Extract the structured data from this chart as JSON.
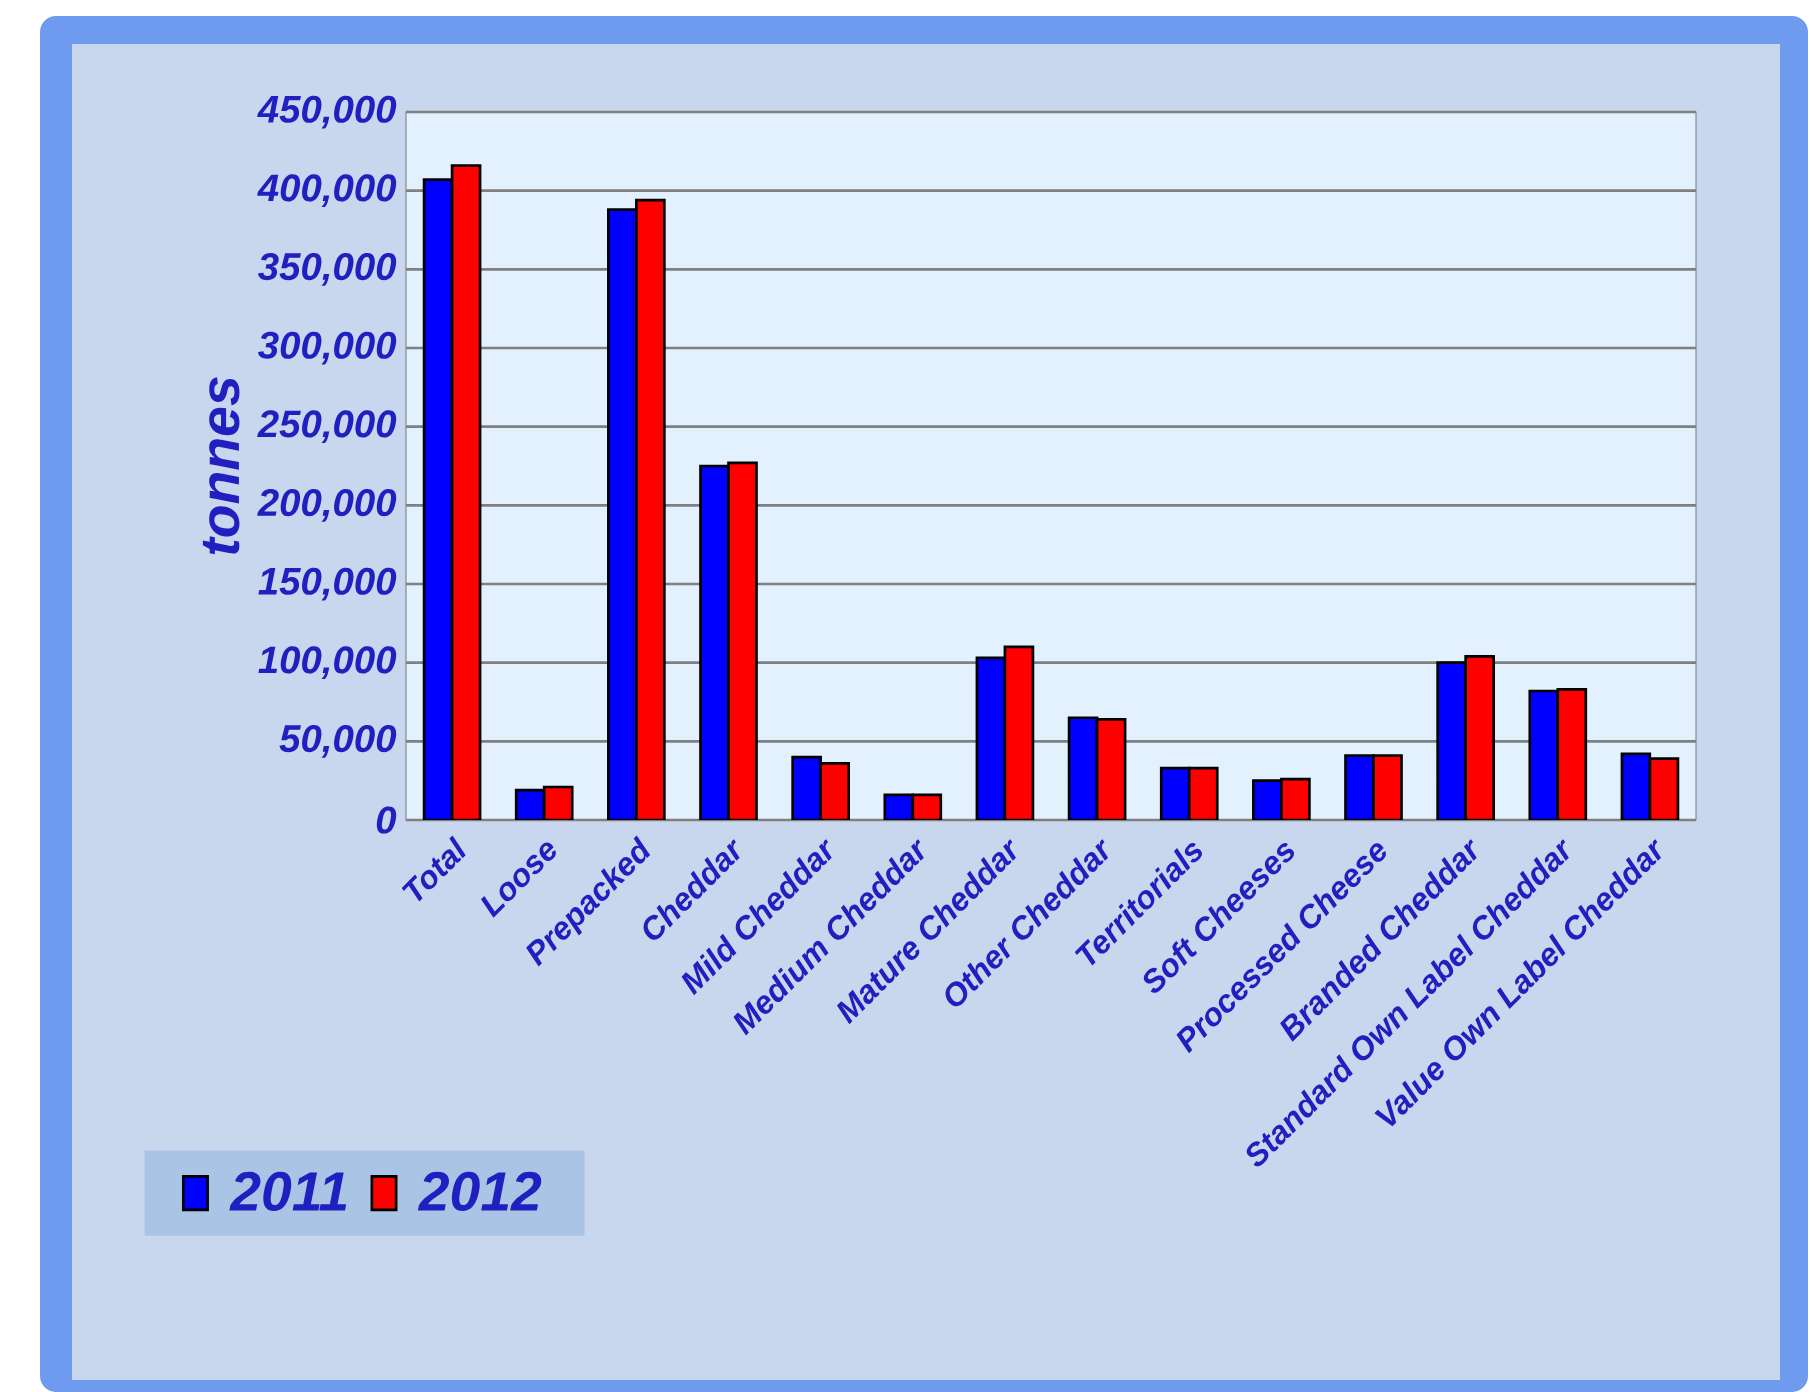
{
  "chart_data": {
    "type": "bar",
    "ylabel": "tonnes",
    "categories": [
      "Total",
      "Loose",
      "Prepacked",
      "Cheddar",
      "Mild Cheddar",
      "Medium Cheddar",
      "Mature Cheddar",
      "Other Cheddar",
      "Territorials",
      "Soft Cheeses",
      "Processed Cheese",
      "Branded Cheddar",
      "Standard Own Label Cheddar",
      "Value Own Label Cheddar"
    ],
    "series": [
      {
        "name": "2011",
        "color": "#0000ff",
        "values": [
          407000,
          19000,
          388000,
          225000,
          40000,
          16000,
          103000,
          65000,
          33000,
          25000,
          41000,
          100000,
          82000,
          42000
        ]
      },
      {
        "name": "2012",
        "color": "#ff0000",
        "values": [
          416000,
          21000,
          394000,
          227000,
          36000,
          16000,
          110000,
          64000,
          33000,
          26000,
          41000,
          104000,
          83000,
          39000
        ]
      }
    ],
    "ylim": [
      0,
      450000
    ],
    "yticks": [
      {
        "value": 0,
        "label": "0"
      },
      {
        "value": 50000,
        "label": "50,000"
      },
      {
        "value": 100000,
        "label": "100,000"
      },
      {
        "value": 150000,
        "label": "150,000"
      },
      {
        "value": 200000,
        "label": "200,000"
      },
      {
        "value": 250000,
        "label": "250,000"
      },
      {
        "value": 300000,
        "label": "300,000"
      },
      {
        "value": 350000,
        "label": "350,000"
      },
      {
        "value": 400000,
        "label": "400,000"
      },
      {
        "value": 450000,
        "label": "450,000"
      }
    ],
    "grid": "y",
    "legend": "bottom left"
  }
}
